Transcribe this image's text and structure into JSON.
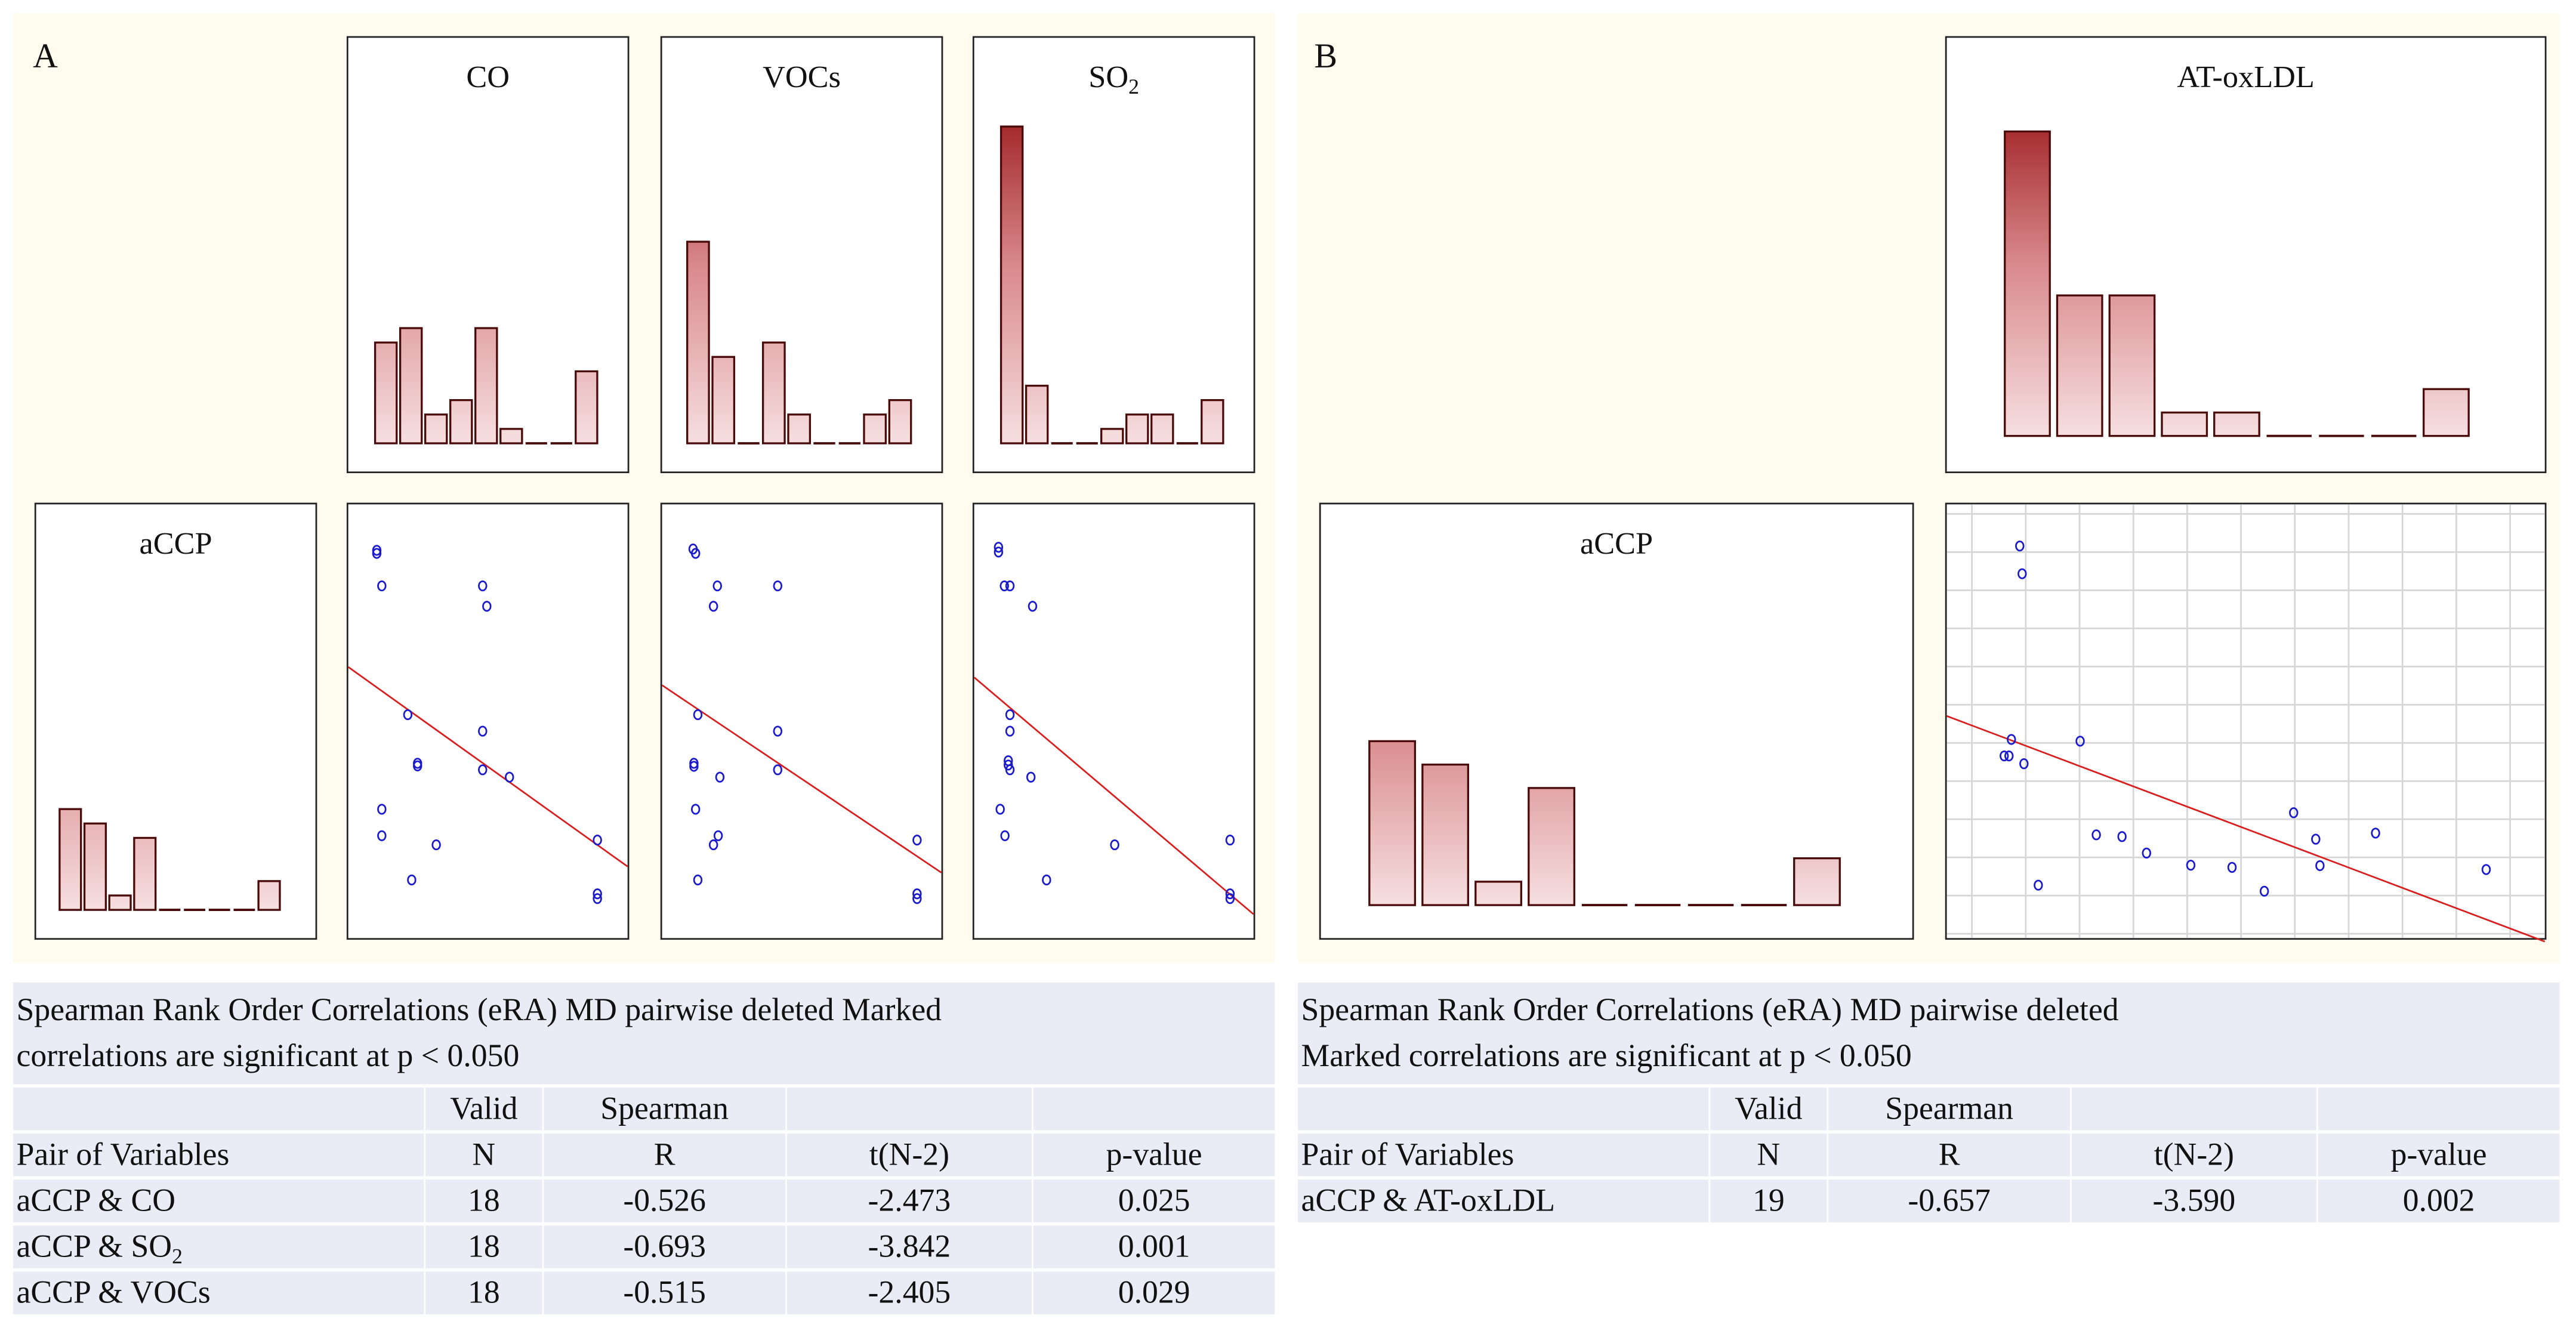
{
  "panel_a": {
    "label": "A"
  },
  "panel_b": {
    "label": "B"
  },
  "colors": {
    "bar_top": "#a42a2c",
    "bar_bottom": "#f6dfe0",
    "bar_stroke": "#4a0a0a",
    "point": "#1a1acc",
    "fit_line": "#d81e1e",
    "panel_bg": "#fffbef",
    "table_bg": "#e9ecf5",
    "grid": "#d6d6d6"
  },
  "chart_data": [
    {
      "id": "a-hist-co",
      "type": "bar",
      "title": "CO",
      "title_sub": "",
      "values": [
        7,
        8,
        2,
        3,
        8,
        1,
        0,
        0,
        5
      ]
    },
    {
      "id": "a-hist-vocs",
      "type": "bar",
      "title": "VOCs",
      "title_sub": "",
      "values": [
        14,
        6,
        0,
        7,
        2,
        0,
        0,
        2,
        3
      ]
    },
    {
      "id": "a-hist-so2",
      "type": "bar",
      "title": "SO",
      "title_sub": "2",
      "values": [
        22,
        4,
        0,
        0,
        1,
        2,
        2,
        0,
        3
      ]
    },
    {
      "id": "a-hist-accp",
      "type": "bar",
      "title": "aCCP",
      "title_sub": "",
      "values": [
        7,
        6,
        1,
        5,
        0,
        0,
        0,
        0,
        2
      ]
    },
    {
      "id": "a-scatter-co",
      "type": "scatter",
      "xlim": [
        0,
        100
      ],
      "ylim": [
        0,
        100
      ],
      "points": [
        [
          10.2,
          89.4
        ],
        [
          10.2,
          88.7
        ],
        [
          12,
          81.2
        ],
        [
          48.1,
          81.2
        ],
        [
          49.6,
          76.5
        ],
        [
          21.3,
          51.5
        ],
        [
          48.1,
          47.7
        ],
        [
          24.8,
          40.3
        ],
        [
          24.8,
          39.7
        ],
        [
          48.1,
          38.8
        ],
        [
          57.7,
          37.1
        ],
        [
          12,
          29.7
        ],
        [
          12,
          23.6
        ],
        [
          31.5,
          21.5
        ],
        [
          22.7,
          13.4
        ],
        [
          89.2,
          22.6
        ],
        [
          89.2,
          10.2
        ],
        [
          89.2,
          9.1
        ]
      ],
      "fit": {
        "intercept": 62.5,
        "slope": -0.46
      }
    },
    {
      "id": "a-scatter-vocs",
      "type": "scatter",
      "xlim": [
        0,
        100
      ],
      "ylim": [
        0,
        100
      ],
      "points": [
        [
          11.1,
          89.7
        ],
        [
          12,
          88.7
        ],
        [
          19.8,
          81.2
        ],
        [
          41.4,
          81.2
        ],
        [
          18.4,
          76.5
        ],
        [
          12.8,
          51.5
        ],
        [
          41.4,
          47.7
        ],
        [
          11.4,
          40.3
        ],
        [
          11.4,
          39.6
        ],
        [
          41.4,
          38.8
        ],
        [
          20.7,
          37.1
        ],
        [
          12,
          29.7
        ],
        [
          20.1,
          23.6
        ],
        [
          18.4,
          21.5
        ],
        [
          12.8,
          13.4
        ],
        [
          91.3,
          22.6
        ],
        [
          91.3,
          10.2
        ],
        [
          91.3,
          9.1
        ]
      ],
      "fit": {
        "intercept": 58.3,
        "slope": -0.432
      }
    },
    {
      "id": "a-scatter-so2",
      "type": "scatter",
      "xlim": [
        0,
        100
      ],
      "ylim": [
        0,
        100
      ],
      "points": [
        [
          8.7,
          90.1
        ],
        [
          8.7,
          89
        ],
        [
          10.8,
          81.2
        ],
        [
          12.8,
          81.2
        ],
        [
          20.9,
          76.5
        ],
        [
          12.8,
          51.5
        ],
        [
          12.8,
          47.7
        ],
        [
          12.2,
          40.9
        ],
        [
          12.2,
          39.9
        ],
        [
          12.8,
          38.8
        ],
        [
          20.3,
          37.1
        ],
        [
          9.3,
          29.7
        ],
        [
          11,
          23.6
        ],
        [
          50.3,
          21.5
        ],
        [
          25.9,
          13.4
        ],
        [
          91.6,
          22.6
        ],
        [
          91.6,
          10.2
        ],
        [
          91.6,
          9.1
        ]
      ],
      "fit": {
        "intercept": 60.1,
        "slope": -0.546
      }
    },
    {
      "id": "b-hist-atoxldl",
      "type": "bar",
      "title": "AT-oxLDL",
      "title_sub": "",
      "values": [
        13,
        6,
        6,
        1,
        1,
        0,
        0,
        0,
        2
      ]
    },
    {
      "id": "b-hist-accp",
      "type": "bar",
      "title": "aCCP",
      "title_sub": "",
      "values": [
        7,
        6,
        1,
        5,
        0,
        0,
        0,
        0,
        2
      ]
    },
    {
      "id": "b-scatter-atoxldl",
      "type": "scatter",
      "xlim": [
        0,
        100
      ],
      "ylim": [
        0,
        100
      ],
      "grid": true,
      "points": [
        [
          12.2,
          90.4
        ],
        [
          12.6,
          84
        ],
        [
          10.8,
          45.8
        ],
        [
          9.6,
          42
        ],
        [
          10.4,
          42
        ],
        [
          12.9,
          40.2
        ],
        [
          22.3,
          45.4
        ],
        [
          15.3,
          12.2
        ],
        [
          25,
          23.8
        ],
        [
          29.3,
          23.4
        ],
        [
          33.4,
          19.6
        ],
        [
          40.8,
          16.8
        ],
        [
          47.7,
          16.3
        ],
        [
          53.1,
          10.8
        ],
        [
          58,
          28.9
        ],
        [
          61.7,
          22.8
        ],
        [
          62.4,
          16.7
        ],
        [
          71.7,
          24.2
        ],
        [
          90.2,
          15.8
        ]
      ],
      "fit": {
        "intercept": 51.2,
        "slope": -0.52
      }
    }
  ],
  "table_a": {
    "caption_line1": "Spearman Rank Order Correlations (eRA) MD pairwise deleted Marked",
    "caption_line2": "correlations are significant  at p < 0.050",
    "header1": [
      "",
      "Valid",
      "Spearman",
      "",
      ""
    ],
    "header2": [
      "Pair of Variables",
      "N",
      "R",
      "t(N-2)",
      "p-value"
    ],
    "rows": [
      {
        "pair": "aCCP & CO",
        "pair_sub": "",
        "n": "18",
        "r": "-0.526",
        "t": "-2.473",
        "p": "0.025"
      },
      {
        "pair": "aCCP & SO",
        "pair_sub": "2",
        "n": "18",
        "r": "-0.693",
        "t": "-3.842",
        "p": "0.001"
      },
      {
        "pair": "aCCP & VOCs",
        "pair_sub": "",
        "n": "18",
        "r": "-0.515",
        "t": "-2.405",
        "p": "0.029"
      }
    ]
  },
  "table_b": {
    "caption_line1": "Spearman Rank Order Correlations (eRA) MD pairwise  deleted",
    "caption_line2": "Marked correlations are significant  at p < 0.050",
    "header1": [
      "",
      "Valid",
      "Spearman",
      "",
      ""
    ],
    "header2": [
      "Pair of Variables",
      "N",
      "R",
      "t(N-2)",
      "p-value"
    ],
    "rows": [
      {
        "pair": "aCCP & AT-oxLDL",
        "pair_sub": "",
        "n": "19",
        "r": "-0.657",
        "t": "-3.590",
        "p": "0.002"
      }
    ]
  }
}
